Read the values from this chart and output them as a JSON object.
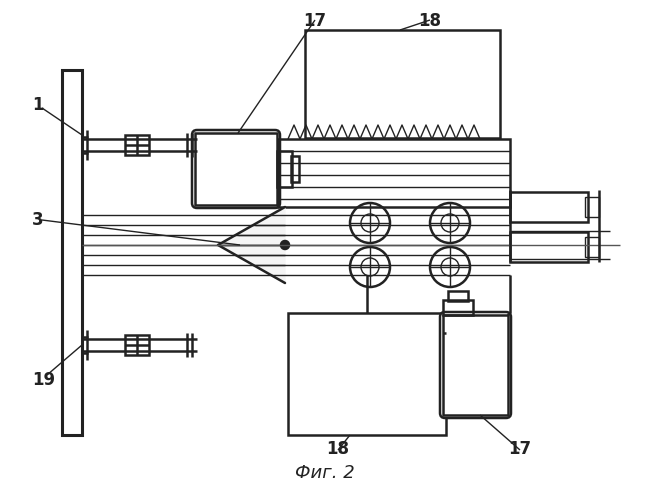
{
  "title": "Фиг. 2",
  "bg_color": "#ffffff",
  "line_color": "#222222",
  "label_color": "#111111",
  "lw_main": 1.8,
  "lw_thin": 1.0,
  "lw_thick": 2.2
}
